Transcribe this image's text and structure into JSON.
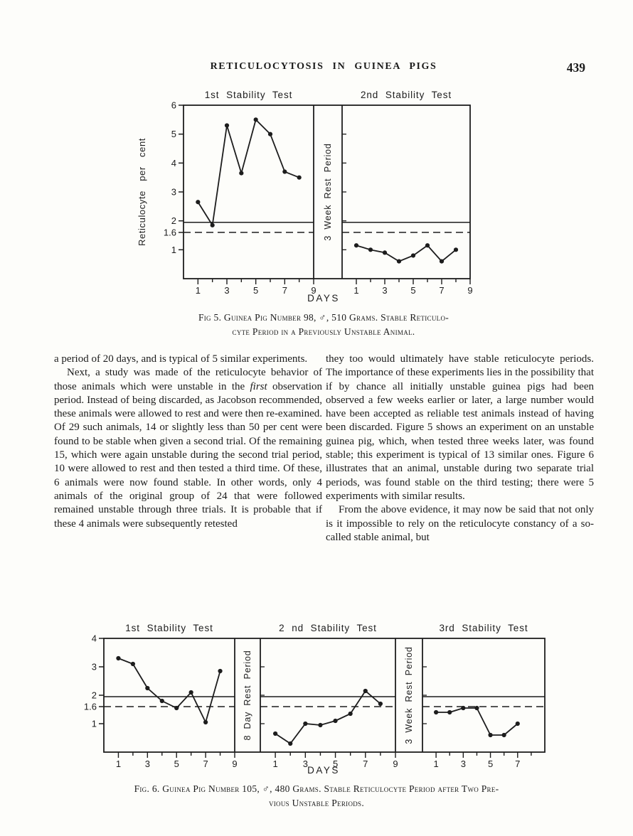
{
  "header": {
    "running_title": "RETICULOCYTOSIS IN GUINEA PIGS",
    "page_number": "439"
  },
  "chart_data": [
    {
      "id": "fig5",
      "type": "line",
      "figure": "Figure 5",
      "ylabel": "Reticulocyte per cent",
      "xlabel": "DAYS",
      "ylim": [
        0,
        6
      ],
      "yticks": [
        6,
        5,
        4,
        3,
        2,
        1.6,
        1
      ],
      "ytick_labels": [
        "6",
        "5",
        "4",
        "3",
        "2",
        "1.6",
        "1"
      ],
      "reference_lines": {
        "solid": 1.95,
        "dashed": 1.6
      },
      "panels": [
        {
          "title": "1st Stability Test",
          "days": [
            1,
            2,
            3,
            4,
            5,
            6,
            7,
            8
          ],
          "values": [
            2.65,
            1.85,
            5.3,
            3.65,
            5.5,
            5.0,
            3.7,
            3.5
          ],
          "xtick_labels": [
            1,
            3,
            5,
            7,
            9
          ],
          "tick_days": 9
        },
        {
          "title": "2nd Stability Test",
          "days": [
            1,
            2,
            3,
            4,
            5,
            6,
            7,
            8
          ],
          "values": [
            1.15,
            1.0,
            0.9,
            0.6,
            0.8,
            1.15,
            0.6,
            1.0
          ],
          "xtick_labels": [
            1,
            3,
            5,
            7,
            9
          ],
          "tick_days": 9
        }
      ],
      "rest_bands": [
        {
          "label": "3 Week Rest Period"
        }
      ],
      "caption_line1": "Fig 5.  Guinea Pig Number 98, ♂, 510 Grams.  Stable Reticulo-",
      "caption_line2": "cyte Period in a Previously Unstable Animal."
    },
    {
      "id": "fig6",
      "type": "line",
      "figure": "Figure 6",
      "ylabel": "",
      "xlabel": "DAYS",
      "ylim": [
        0,
        4
      ],
      "yticks": [
        4,
        3,
        2,
        1.6,
        1
      ],
      "ytick_labels": [
        "4",
        "3",
        "2",
        "1.6",
        "1"
      ],
      "reference_lines": {
        "solid": 1.95,
        "dashed": 1.6
      },
      "panels": [
        {
          "title": "1st Stability Test",
          "days": [
            1,
            2,
            3,
            4,
            5,
            6,
            7,
            8
          ],
          "values": [
            3.3,
            3.1,
            2.25,
            1.8,
            1.55,
            2.1,
            1.05,
            2.85
          ],
          "xtick_labels": [
            1,
            3,
            5,
            7,
            9
          ],
          "tick_days": 9
        },
        {
          "title": "2 nd Stability Test",
          "days": [
            1,
            2,
            3,
            4,
            5,
            6,
            7,
            8
          ],
          "values": [
            0.65,
            0.3,
            1.0,
            0.95,
            1.1,
            1.35,
            2.15,
            1.7
          ],
          "xtick_labels": [
            1,
            3,
            5,
            7,
            9
          ],
          "tick_days": 9
        },
        {
          "title": "3rd Stability Test",
          "days": [
            1,
            2,
            3,
            4,
            5,
            6,
            7
          ],
          "values": [
            1.4,
            1.4,
            1.55,
            1.55,
            0.6,
            0.6,
            1.0
          ],
          "xtick_labels": [
            1,
            3,
            5,
            7
          ],
          "tick_days": 8
        }
      ],
      "rest_bands": [
        {
          "label": "8 Day Rest Period"
        },
        {
          "label": "3 Week Rest Period"
        }
      ],
      "caption_line1": "Fig. 6.  Guinea Pig Number 105, ♂, 480 Grams.  Stable Reticulocyte Period after Two Pre-",
      "caption_line2": "vious Unstable Periods."
    }
  ],
  "body": {
    "left_column": {
      "paragraphs": [
        {
          "runs": [
            {
              "t": "a period of 20 days, and is typical of 5 similar experiments."
            }
          ]
        },
        {
          "runs": [
            {
              "t": "Next, a study was made of the reticulocyte behavior of those animals which were unstable in the "
            },
            {
              "t": "first",
              "i": true
            },
            {
              "t": " observation period.  Instead of being discarded, as Jacobson recommended, these animals were allowed to rest and were then re-examined.  Of 29 such animals, 14 or slightly less than 50 per cent were found to be stable when given a second trial.  Of the remaining 15, which were again unstable during the second trial period, 10 were allowed to rest and then tested a third time.  Of these, 6 animals were now found stable.  In other words, only 4 animals of the original group of 24 that were followed remained unstable through three trials.  It is probable that if these 4 animals were subsequently retested"
            }
          ]
        }
      ]
    },
    "right_column": {
      "paragraphs": [
        {
          "runs": [
            {
              "t": "they too would ultimately have stable reticulocyte periods.  The importance of these experiments lies in the possibility that if by chance all initially unstable guinea pigs had been observed a few weeks earlier or later, a large number would have been accepted as reliable test animals instead of having been discarded.  Figure 5 shows an experiment on an unstable guinea pig, which, when tested three weeks later, was found stable; this experiment is typical of 13 similar ones.  Figure 6 illustrates that an animal, unstable during two separate trial periods, was found stable on the third testing; there were 5 experiments with similar results."
            }
          ]
        },
        {
          "runs": [
            {
              "t": "From the above evidence, it may now be said that not only is it impossible to rely on the reticulocyte constancy of a so-called stable animal, but"
            }
          ]
        }
      ]
    }
  }
}
